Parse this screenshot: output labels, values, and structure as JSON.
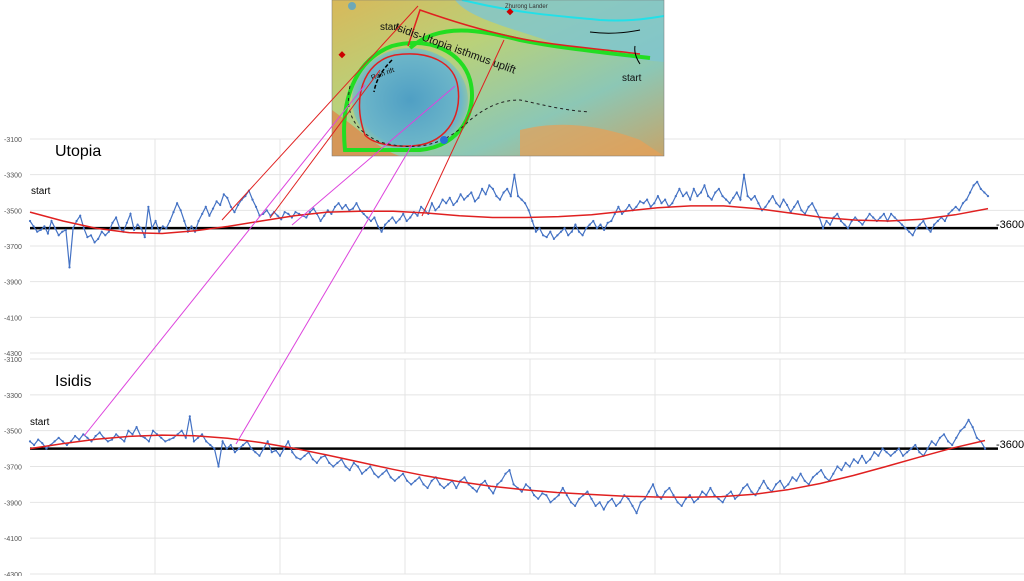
{
  "map_inset": {
    "labels": {
      "isthmus": "Isidis-Utopia isthmus uplift",
      "start_left": "start",
      "start_right": "start",
      "rift": "Rain rift",
      "lander": "Zhurong Lander"
    }
  },
  "chart_data": [
    {
      "type": "line",
      "title": "Utopia",
      "start_label": "start",
      "reference_label": "-3600",
      "reference_value": -3600,
      "yticks": [
        -3100,
        -3300,
        -3500,
        -3700,
        -3900,
        -4100,
        -4300
      ],
      "ylim": [
        -4300,
        -3100
      ],
      "grid": true,
      "colors": {
        "profile": "#4472c4",
        "trend": "#e02020",
        "reference": "#000000"
      },
      "series": [
        {
          "values": [
            -3560,
            -3590,
            -3620,
            -3610,
            -3590,
            -3630,
            -3560,
            -3600,
            -3640,
            -3620,
            -3610,
            -3820,
            -3600,
            -3560,
            -3530,
            -3600,
            -3650,
            -3640,
            -3680,
            -3660,
            -3620,
            -3640,
            -3620,
            -3570,
            -3540,
            -3600,
            -3620,
            -3570,
            -3520,
            -3610,
            -3580,
            -3600,
            -3650,
            -3480,
            -3600,
            -3560,
            -3620,
            -3590,
            -3600,
            -3560,
            -3510,
            -3460,
            -3500,
            -3560,
            -3620,
            -3590,
            -3620,
            -3560,
            -3520,
            -3480,
            -3530,
            -3490,
            -3450,
            -3470,
            -3410,
            -3430,
            -3480,
            -3510,
            -3470,
            -3440,
            -3420,
            -3390,
            -3440,
            -3480,
            -3530,
            -3520,
            -3500,
            -3530,
            -3510,
            -3530,
            -3550,
            -3510,
            -3520,
            -3540,
            -3510,
            -3520,
            -3530,
            -3540,
            -3510,
            -3490,
            -3520,
            -3560,
            -3530,
            -3500,
            -3520,
            -3480,
            -3460,
            -3490,
            -3470,
            -3500,
            -3490,
            -3460,
            -3500,
            -3520,
            -3540,
            -3560,
            -3540,
            -3590,
            -3620,
            -3580,
            -3560,
            -3540,
            -3570,
            -3550,
            -3520,
            -3560,
            -3540,
            -3510,
            -3530,
            -3480,
            -3500,
            -3520,
            -3460,
            -3500,
            -3480,
            -3440,
            -3460,
            -3430,
            -3470,
            -3450,
            -3410,
            -3440,
            -3420,
            -3400,
            -3450,
            -3430,
            -3380,
            -3410,
            -3360,
            -3380,
            -3420,
            -3440,
            -3400,
            -3380,
            -3420,
            -3300,
            -3420,
            -3440,
            -3460,
            -3500,
            -3560,
            -3620,
            -3600,
            -3640,
            -3650,
            -3620,
            -3660,
            -3640,
            -3620,
            -3600,
            -3640,
            -3620,
            -3580,
            -3620,
            -3640,
            -3600,
            -3580,
            -3560,
            -3600,
            -3580,
            -3610,
            -3570,
            -3560,
            -3520,
            -3480,
            -3520,
            -3500,
            -3470,
            -3500,
            -3480,
            -3450,
            -3460,
            -3440,
            -3480,
            -3460,
            -3420,
            -3460,
            -3440,
            -3480,
            -3460,
            -3420,
            -3380,
            -3420,
            -3400,
            -3440,
            -3380,
            -3420,
            -3400,
            -3360,
            -3420,
            -3440,
            -3400,
            -3380,
            -3420,
            -3440,
            -3460,
            -3430,
            -3400,
            -3440,
            -3300,
            -3420,
            -3440,
            -3420,
            -3460,
            -3500,
            -3480,
            -3450,
            -3420,
            -3460,
            -3480,
            -3440,
            -3470,
            -3510,
            -3480,
            -3450,
            -3500,
            -3520,
            -3480,
            -3460,
            -3500,
            -3540,
            -3600,
            -3560,
            -3580,
            -3540,
            -3520,
            -3560,
            -3580,
            -3600,
            -3560,
            -3540,
            -3560,
            -3580,
            -3550,
            -3520,
            -3540,
            -3560,
            -3540,
            -3520,
            -3560,
            -3520,
            -3540,
            -3560,
            -3580,
            -3600,
            -3620,
            -3640,
            -3600,
            -3580,
            -3560,
            -3600,
            -3620,
            -3580,
            -3560,
            -3540,
            -3560,
            -3520,
            -3500,
            -3480,
            -3500,
            -3460,
            -3440,
            -3400,
            -3360,
            -3340,
            -3380,
            -3400,
            -3420
          ]
        },
        {
          "values": [
            -3510,
            -3560,
            -3600,
            -3625,
            -3630,
            -3615,
            -3590,
            -3560,
            -3530,
            -3510,
            -3505,
            -3505,
            -3515,
            -3530,
            -3540,
            -3540,
            -3535,
            -3525,
            -3505,
            -3485,
            -3475,
            -3475,
            -3490,
            -3515,
            -3540,
            -3555,
            -3560,
            -3550,
            -3525,
            -3490
          ]
        }
      ]
    },
    {
      "type": "line",
      "title": "Isidis",
      "start_label": "start",
      "reference_label": "-3600",
      "reference_value": -3600,
      "yticks": [
        -3100,
        -3300,
        -3500,
        -3700,
        -3900,
        -4100,
        -4300
      ],
      "ylim": [
        -4300,
        -3100
      ],
      "grid": true,
      "colors": {
        "profile": "#4472c4",
        "trend": "#e02020",
        "reference": "#000000"
      },
      "series": [
        {
          "values": [
            -3560,
            -3580,
            -3550,
            -3570,
            -3600,
            -3580,
            -3560,
            -3540,
            -3560,
            -3580,
            -3560,
            -3530,
            -3550,
            -3520,
            -3540,
            -3560,
            -3530,
            -3510,
            -3540,
            -3560,
            -3550,
            -3520,
            -3540,
            -3560,
            -3500,
            -3520,
            -3480,
            -3530,
            -3540,
            -3560,
            -3500,
            -3520,
            -3540,
            -3560,
            -3550,
            -3540,
            -3520,
            -3500,
            -3540,
            -3420,
            -3560,
            -3540,
            -3520,
            -3560,
            -3580,
            -3600,
            -3700,
            -3560,
            -3600,
            -3580,
            -3620,
            -3600,
            -3580,
            -3560,
            -3600,
            -3620,
            -3640,
            -3600,
            -3560,
            -3620,
            -3610,
            -3640,
            -3600,
            -3560,
            -3620,
            -3650,
            -3660,
            -3640,
            -3620,
            -3660,
            -3680,
            -3650,
            -3640,
            -3680,
            -3700,
            -3680,
            -3660,
            -3700,
            -3720,
            -3680,
            -3700,
            -3740,
            -3720,
            -3700,
            -3740,
            -3760,
            -3740,
            -3720,
            -3760,
            -3780,
            -3760,
            -3740,
            -3780,
            -3800,
            -3780,
            -3760,
            -3800,
            -3820,
            -3780,
            -3760,
            -3800,
            -3820,
            -3800,
            -3780,
            -3820,
            -3780,
            -3760,
            -3800,
            -3820,
            -3840,
            -3800,
            -3780,
            -3820,
            -3850,
            -3800,
            -3780,
            -3740,
            -3720,
            -3800,
            -3820,
            -3840,
            -3800,
            -3820,
            -3860,
            -3880,
            -3850,
            -3860,
            -3900,
            -3880,
            -3860,
            -3820,
            -3860,
            -3900,
            -3920,
            -3880,
            -3860,
            -3840,
            -3880,
            -3920,
            -3900,
            -3940,
            -3900,
            -3880,
            -3920,
            -3900,
            -3860,
            -3880,
            -3920,
            -3960,
            -3900,
            -3880,
            -3840,
            -3800,
            -3860,
            -3880,
            -3840,
            -3820,
            -3860,
            -3900,
            -3920,
            -3880,
            -3860,
            -3900,
            -3880,
            -3840,
            -3860,
            -3820,
            -3860,
            -3880,
            -3900,
            -3860,
            -3840,
            -3880,
            -3860,
            -3820,
            -3800,
            -3840,
            -3860,
            -3820,
            -3780,
            -3820,
            -3840,
            -3800,
            -3780,
            -3820,
            -3800,
            -3760,
            -3780,
            -3740,
            -3780,
            -3800,
            -3760,
            -3740,
            -3720,
            -3760,
            -3780,
            -3740,
            -3700,
            -3720,
            -3680,
            -3700,
            -3660,
            -3680,
            -3640,
            -3680,
            -3660,
            -3620,
            -3640,
            -3600,
            -3620,
            -3640,
            -3620,
            -3600,
            -3640,
            -3620,
            -3600,
            -3580,
            -3620,
            -3640,
            -3600,
            -3560,
            -3580,
            -3540,
            -3520,
            -3560,
            -3580,
            -3540,
            -3500,
            -3480,
            -3440,
            -3480,
            -3540,
            -3560,
            -3600
          ]
        },
        {
          "values": [
            -3600,
            -3572,
            -3548,
            -3532,
            -3525,
            -3528,
            -3542,
            -3566,
            -3598,
            -3635,
            -3675,
            -3715,
            -3752,
            -3784,
            -3810,
            -3830,
            -3845,
            -3856,
            -3865,
            -3870,
            -3872,
            -3868,
            -3855,
            -3830,
            -3795,
            -3750,
            -3700,
            -3648,
            -3598,
            -3555
          ]
        }
      ]
    }
  ]
}
